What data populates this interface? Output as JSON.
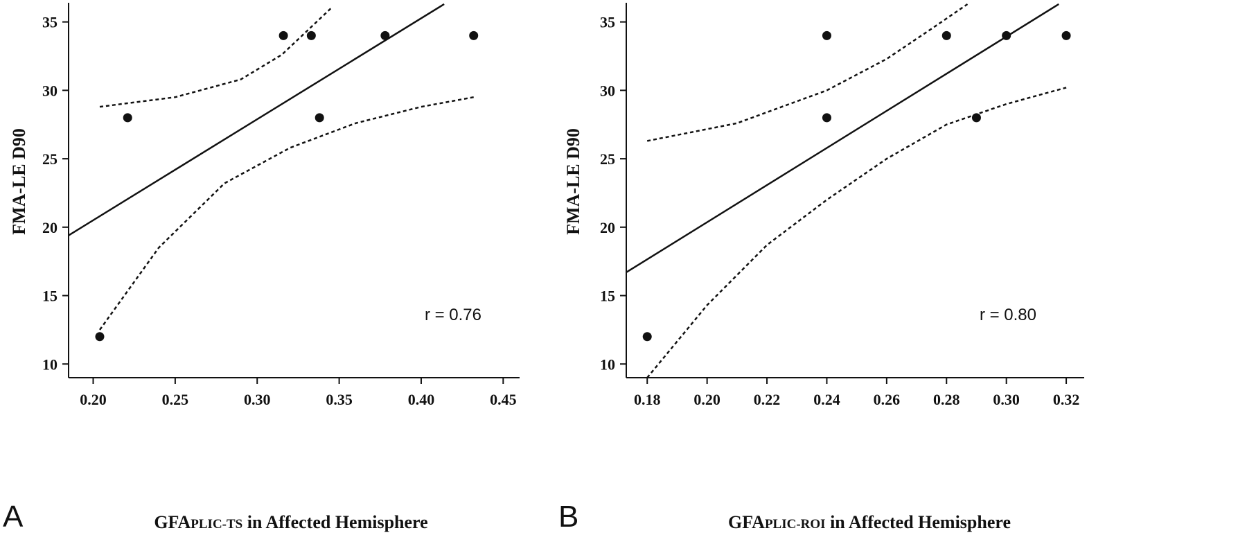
{
  "chart_data": [
    {
      "panel": "A",
      "type": "scatter",
      "xlabel": {
        "prefix": "GFA",
        "subscript": "PLIC-TS",
        "suffix": " in Affected Hemisphere"
      },
      "ylabel": "FMA-LE D90",
      "annotation": "r = 0.76",
      "xlim": [
        0.185,
        0.46
      ],
      "ylim": [
        9,
        36.4
      ],
      "xticks": [
        "0.20",
        "0.25",
        "0.30",
        "0.35",
        "0.40",
        "0.45"
      ],
      "yticks": [
        "10",
        "15",
        "20",
        "25",
        "30",
        "35"
      ],
      "grid": false,
      "points": [
        {
          "x": 0.204,
          "y": 12
        },
        {
          "x": 0.221,
          "y": 28
        },
        {
          "x": 0.316,
          "y": 34
        },
        {
          "x": 0.333,
          "y": 34
        },
        {
          "x": 0.338,
          "y": 28
        },
        {
          "x": 0.378,
          "y": 34
        },
        {
          "x": 0.432,
          "y": 34
        }
      ],
      "fit_line": {
        "x1": 0.185,
        "y1": 19.4,
        "x2": 0.414,
        "y2": 36.3
      },
      "ci_upper": [
        [
          0.204,
          28.8
        ],
        [
          0.25,
          29.5
        ],
        [
          0.29,
          30.8
        ],
        [
          0.315,
          32.6
        ],
        [
          0.33,
          34.3
        ],
        [
          0.345,
          36.0
        ]
      ],
      "ci_lower": [
        [
          0.204,
          12.5
        ],
        [
          0.24,
          18.5
        ],
        [
          0.28,
          23.2
        ],
        [
          0.32,
          25.8
        ],
        [
          0.36,
          27.6
        ],
        [
          0.4,
          28.8
        ],
        [
          0.432,
          29.5
        ]
      ]
    },
    {
      "panel": "B",
      "type": "scatter",
      "xlabel": {
        "prefix": "GFA",
        "subscript": "PLIC-ROI",
        "suffix": " in Affected Hemisphere"
      },
      "ylabel": "FMA-LE D90",
      "annotation": "r = 0.80",
      "xlim": [
        0.173,
        0.326
      ],
      "ylim": [
        9,
        36.4
      ],
      "xticks": [
        "0.18",
        "0.20",
        "0.22",
        "0.24",
        "0.26",
        "0.28",
        "0.30",
        "0.32"
      ],
      "yticks": [
        "10",
        "15",
        "20",
        "25",
        "30",
        "35"
      ],
      "grid": false,
      "points": [
        {
          "x": 0.18,
          "y": 12
        },
        {
          "x": 0.24,
          "y": 28
        },
        {
          "x": 0.24,
          "y": 34
        },
        {
          "x": 0.28,
          "y": 34
        },
        {
          "x": 0.29,
          "y": 28
        },
        {
          "x": 0.3,
          "y": 34
        },
        {
          "x": 0.32,
          "y": 34
        }
      ],
      "fit_line": {
        "x1": 0.173,
        "y1": 16.7,
        "x2": 0.3175,
        "y2": 36.3
      },
      "ci_upper": [
        [
          0.18,
          26.3
        ],
        [
          0.21,
          27.6
        ],
        [
          0.24,
          30.0
        ],
        [
          0.26,
          32.3
        ],
        [
          0.275,
          34.5
        ],
        [
          0.287,
          36.3
        ]
      ],
      "ci_lower": [
        [
          0.18,
          9.0
        ],
        [
          0.2,
          14.3
        ],
        [
          0.22,
          18.7
        ],
        [
          0.24,
          22.0
        ],
        [
          0.26,
          25.0
        ],
        [
          0.28,
          27.5
        ],
        [
          0.3,
          29.0
        ],
        [
          0.32,
          30.2
        ]
      ]
    }
  ]
}
